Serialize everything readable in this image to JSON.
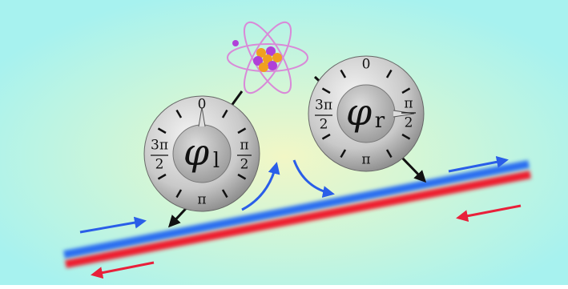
{
  "dials": [
    {
      "symbol": "φ",
      "subscript": "l",
      "top": "0",
      "bottom": "π",
      "left": {
        "numerator": "3π",
        "denominator": "2"
      },
      "right": {
        "numerator": "π",
        "denominator": "2"
      }
    },
    {
      "symbol": "φ",
      "subscript": "r",
      "top": "0",
      "bottom": "π",
      "left": {
        "numerator": "3π",
        "denominator": "2"
      },
      "right": {
        "numerator": "π",
        "denominator": "2"
      }
    }
  ]
}
